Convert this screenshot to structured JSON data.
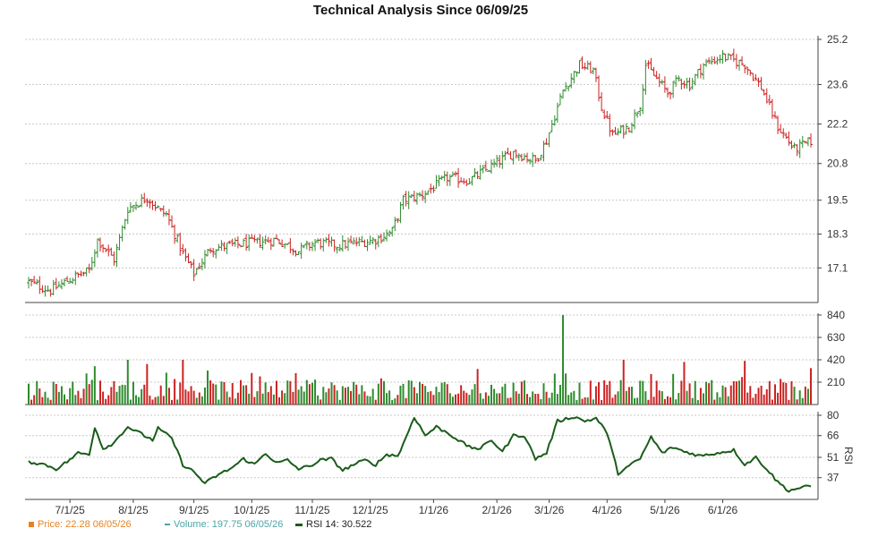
{
  "title": "Technical Analysis Since 06/09/25",
  "colors": {
    "up": "#2e8b2e",
    "down": "#cc2222",
    "rsi": "#1a5c1a",
    "grid": "#c8c8c8",
    "axis_text": "#333333",
    "price_legend": "#e8821e",
    "volume_legend": "#4aa6a6",
    "rsi_legend": "#1a5c1a"
  },
  "legend": {
    "price_text": "Price: 22.28  06/05/26",
    "volume_text": "Volume: 197.75  06/05/26",
    "rsi_text": "RSI 14: 30.522"
  },
  "chart_data": {
    "type": "stock-ohlc-volume-rsi",
    "title": "Technical Analysis Since 06/09/25",
    "x_labels": [
      "7/1/25",
      "8/1/25",
      "9/1/25",
      "10/1/25",
      "11/1/25",
      "12/1/25",
      "1/1/26",
      "2/1/26",
      "3/1/26",
      "4/1/26",
      "5/1/26",
      "6/1/26"
    ],
    "price_axis": {
      "ticks": [
        "17.1",
        "18.3",
        "19.5",
        "20.8",
        "22.2",
        "23.6",
        "25.2"
      ],
      "range": [
        16.0,
        25.2
      ]
    },
    "volume_axis": {
      "ticks": [
        "210",
        "420",
        "630",
        "840"
      ],
      "range": [
        0,
        840
      ]
    },
    "rsi_axis": {
      "label": "RSI",
      "ticks": [
        "37",
        "51",
        "66",
        "80"
      ],
      "range": [
        22,
        80
      ]
    },
    "price_keypoints": [
      [
        0,
        16.6
      ],
      [
        8,
        16.3
      ],
      [
        15,
        16.7
      ],
      [
        22,
        17.0
      ],
      [
        25,
        18.1
      ],
      [
        31,
        17.4
      ],
      [
        36,
        19.2
      ],
      [
        43,
        19.6
      ],
      [
        48,
        19.1
      ],
      [
        50,
        19.0
      ],
      [
        56,
        17.6
      ],
      [
        60,
        16.9
      ],
      [
        66,
        17.8
      ],
      [
        74,
        17.9
      ],
      [
        82,
        18.0
      ],
      [
        90,
        18.1
      ],
      [
        98,
        17.7
      ],
      [
        104,
        18.0
      ],
      [
        112,
        17.9
      ],
      [
        120,
        18.0
      ],
      [
        126,
        18.1
      ],
      [
        132,
        18.4
      ],
      [
        136,
        19.5
      ],
      [
        143,
        19.7
      ],
      [
        152,
        20.3
      ],
      [
        160,
        20.2
      ],
      [
        168,
        20.7
      ],
      [
        176,
        21.2
      ],
      [
        184,
        20.9
      ],
      [
        188,
        21.6
      ],
      [
        194,
        23.4
      ],
      [
        200,
        24.3
      ],
      [
        205,
        24.1
      ],
      [
        208,
        22.8
      ],
      [
        212,
        21.8
      ],
      [
        218,
        22.1
      ],
      [
        222,
        22.9
      ],
      [
        224,
        24.3
      ],
      [
        228,
        23.8
      ],
      [
        232,
        23.3
      ],
      [
        236,
        23.8
      ],
      [
        240,
        23.6
      ],
      [
        245,
        24.3
      ],
      [
        252,
        24.6
      ],
      [
        260,
        24.3
      ],
      [
        266,
        23.5
      ],
      [
        272,
        22.1
      ],
      [
        278,
        21.3
      ],
      [
        284,
        21.6
      ]
    ],
    "rsi_keypoints": [
      [
        0,
        48
      ],
      [
        6,
        46
      ],
      [
        10,
        43
      ],
      [
        14,
        48
      ],
      [
        18,
        54
      ],
      [
        22,
        53
      ],
      [
        24,
        72
      ],
      [
        27,
        57
      ],
      [
        31,
        61
      ],
      [
        33,
        66
      ],
      [
        36,
        72
      ],
      [
        42,
        66
      ],
      [
        45,
        63
      ],
      [
        47,
        71
      ],
      [
        52,
        64
      ],
      [
        56,
        46
      ],
      [
        60,
        41
      ],
      [
        64,
        33
      ],
      [
        68,
        38
      ],
      [
        74,
        44
      ],
      [
        78,
        50
      ],
      [
        82,
        46
      ],
      [
        86,
        54
      ],
      [
        90,
        47
      ],
      [
        94,
        49
      ],
      [
        98,
        43
      ],
      [
        102,
        45
      ],
      [
        106,
        49
      ],
      [
        110,
        50
      ],
      [
        114,
        42
      ],
      [
        118,
        46
      ],
      [
        122,
        49
      ],
      [
        126,
        46
      ],
      [
        130,
        53
      ],
      [
        134,
        52
      ],
      [
        136,
        60
      ],
      [
        140,
        79
      ],
      [
        144,
        66
      ],
      [
        148,
        72
      ],
      [
        152,
        68
      ],
      [
        156,
        63
      ],
      [
        160,
        58
      ],
      [
        164,
        57
      ],
      [
        168,
        63
      ],
      [
        172,
        55
      ],
      [
        176,
        66
      ],
      [
        180,
        66
      ],
      [
        184,
        50
      ],
      [
        188,
        54
      ],
      [
        192,
        76
      ],
      [
        198,
        79
      ],
      [
        202,
        76
      ],
      [
        206,
        78
      ],
      [
        210,
        68
      ],
      [
        214,
        40
      ],
      [
        218,
        45
      ],
      [
        222,
        50
      ],
      [
        226,
        65
      ],
      [
        230,
        54
      ],
      [
        234,
        58
      ],
      [
        238,
        55
      ],
      [
        244,
        52
      ],
      [
        250,
        54
      ],
      [
        256,
        56
      ],
      [
        260,
        46
      ],
      [
        264,
        51
      ],
      [
        268,
        43
      ],
      [
        272,
        34
      ],
      [
        276,
        28
      ],
      [
        280,
        30
      ],
      [
        284,
        31
      ]
    ],
    "volume_spike_days": [
      24,
      36,
      43,
      56,
      194,
      216,
      238,
      260
    ],
    "last_price": 22.28,
    "last_volume": 197.75,
    "last_rsi": 30.522,
    "last_date": "06/05/26"
  }
}
